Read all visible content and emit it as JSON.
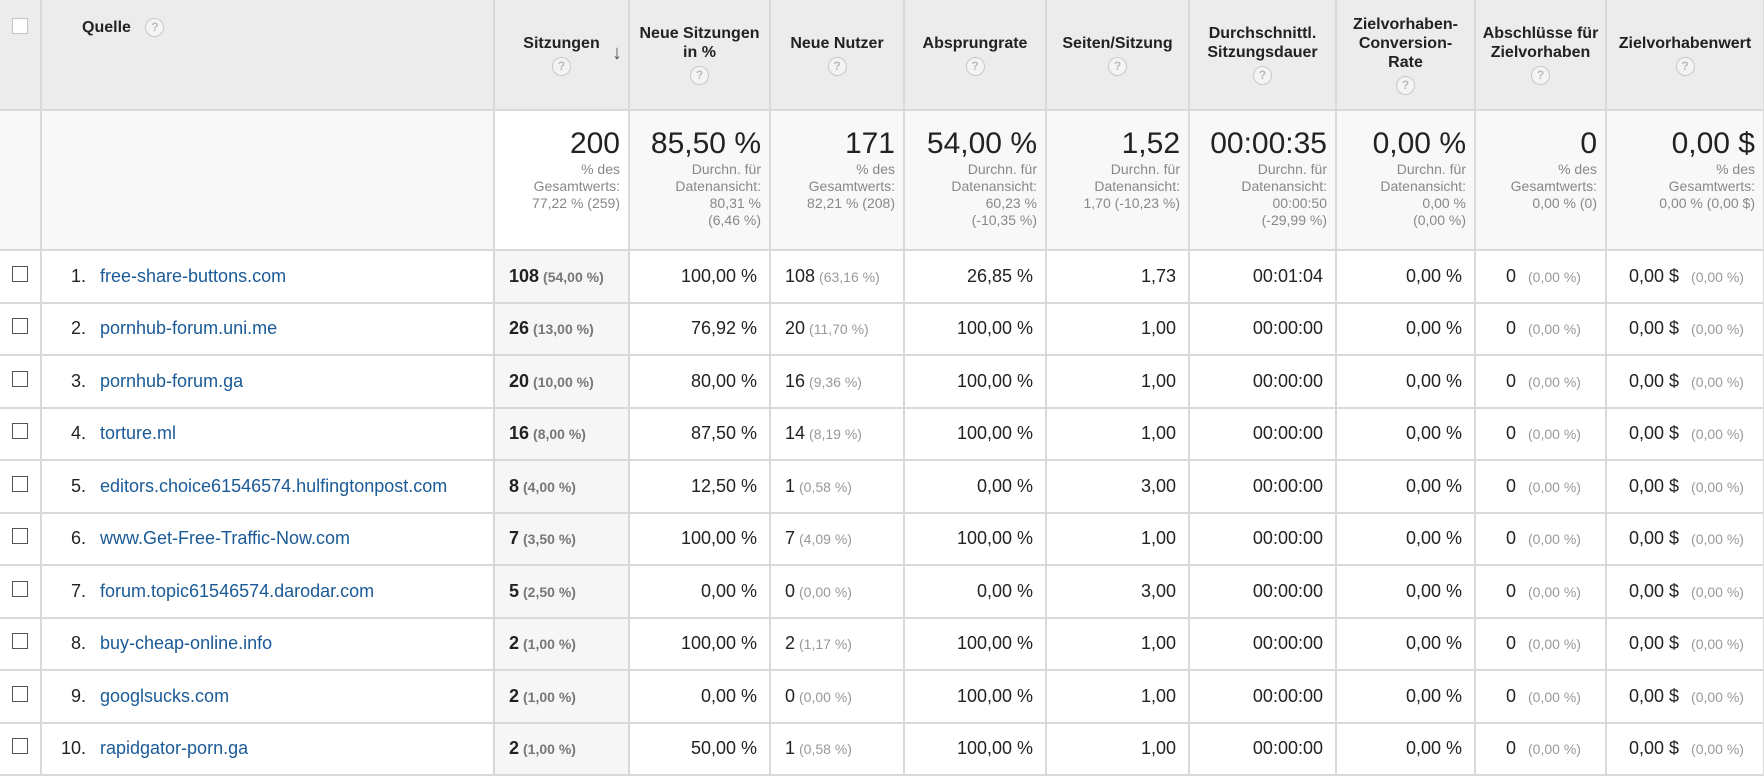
{
  "header": {
    "quelle": "Quelle",
    "sitzungen": "Sitzungen",
    "neue_sitzungen": "Neue Sitzungen in %",
    "neue_nutzer": "Neue Nutzer",
    "absprungrate": "Absprungrate",
    "seiten_sitzung": "Seiten/Sitzung",
    "dauer": "Durchschnittl. Sitzungsdauer",
    "conversion": "Zielvorhaben-Conversion-Rate",
    "abschluesse": "Abschlüsse für Zielvorhaben",
    "wert": "Zielvorhabenwert",
    "help_glyph": "?",
    "sort_glyph": "↓"
  },
  "totals": {
    "sitzungen": {
      "value": "200",
      "sub": "% des\nGesamtwerts:\n77,22 % (259)"
    },
    "neue_sitzungen": {
      "value": "85,50 %",
      "sub": "Durchn. für\nDatenansicht:\n80,31 %\n(6,46 %)"
    },
    "neue_nutzer": {
      "value": "171",
      "sub": "% des\nGesamtwerts:\n82,21 % (208)"
    },
    "absprungrate": {
      "value": "54,00 %",
      "sub": "Durchn. für\nDatenansicht:\n60,23 %\n(-10,35 %)"
    },
    "seiten_sitzung": {
      "value": "1,52",
      "sub": "Durchn. für\nDatenansicht:\n1,70 (-10,23 %)"
    },
    "dauer": {
      "value": "00:00:35",
      "sub": "Durchn. für\nDatenansicht:\n00:00:50\n(-29,99 %)"
    },
    "conversion": {
      "value": "0,00 %",
      "sub": "Durchn. für\nDatenansicht:\n0,00 %\n(0,00 %)"
    },
    "abschluesse": {
      "value": "0",
      "sub": "% des\nGesamtwerts:\n0,00 % (0)"
    },
    "wert": {
      "value": "0,00 $",
      "sub": "% des\nGesamtwerts:\n0,00 % (0,00 $)"
    }
  },
  "rows": [
    {
      "idx": "1.",
      "source": "free-share-buttons.com",
      "sessions": "108",
      "sessions_pct": "(54,00 %)",
      "new_sessions": "100,00 %",
      "new_users": "108",
      "new_users_pct": "(63,16 %)",
      "bounce": "26,85 %",
      "pages": "1,73",
      "duration": "00:01:04",
      "conv": "0,00 %",
      "goals": "0",
      "goals_pct": "(0,00 %)",
      "value": "0,00 $",
      "value_pct": "(0,00 %)"
    },
    {
      "idx": "2.",
      "source": "pornhub-forum.uni.me",
      "sessions": "26",
      "sessions_pct": "(13,00 %)",
      "new_sessions": "76,92 %",
      "new_users": "20",
      "new_users_pct": "(11,70 %)",
      "bounce": "100,00 %",
      "pages": "1,00",
      "duration": "00:00:00",
      "conv": "0,00 %",
      "goals": "0",
      "goals_pct": "(0,00 %)",
      "value": "0,00 $",
      "value_pct": "(0,00 %)"
    },
    {
      "idx": "3.",
      "source": "pornhub-forum.ga",
      "sessions": "20",
      "sessions_pct": "(10,00 %)",
      "new_sessions": "80,00 %",
      "new_users": "16",
      "new_users_pct": "(9,36 %)",
      "bounce": "100,00 %",
      "pages": "1,00",
      "duration": "00:00:00",
      "conv": "0,00 %",
      "goals": "0",
      "goals_pct": "(0,00 %)",
      "value": "0,00 $",
      "value_pct": "(0,00 %)"
    },
    {
      "idx": "4.",
      "source": "torture.ml",
      "sessions": "16",
      "sessions_pct": "(8,00 %)",
      "new_sessions": "87,50 %",
      "new_users": "14",
      "new_users_pct": "(8,19 %)",
      "bounce": "100,00 %",
      "pages": "1,00",
      "duration": "00:00:00",
      "conv": "0,00 %",
      "goals": "0",
      "goals_pct": "(0,00 %)",
      "value": "0,00 $",
      "value_pct": "(0,00 %)"
    },
    {
      "idx": "5.",
      "source": "editors.choice61546574.hulfingtonpost.com",
      "sessions": "8",
      "sessions_pct": "(4,00 %)",
      "new_sessions": "12,50 %",
      "new_users": "1",
      "new_users_pct": "(0,58 %)",
      "bounce": "0,00 %",
      "pages": "3,00",
      "duration": "00:00:00",
      "conv": "0,00 %",
      "goals": "0",
      "goals_pct": "(0,00 %)",
      "value": "0,00 $",
      "value_pct": "(0,00 %)"
    },
    {
      "idx": "6.",
      "source": "www.Get-Free-Traffic-Now.com",
      "sessions": "7",
      "sessions_pct": "(3,50 %)",
      "new_sessions": "100,00 %",
      "new_users": "7",
      "new_users_pct": "(4,09 %)",
      "bounce": "100,00 %",
      "pages": "1,00",
      "duration": "00:00:00",
      "conv": "0,00 %",
      "goals": "0",
      "goals_pct": "(0,00 %)",
      "value": "0,00 $",
      "value_pct": "(0,00 %)"
    },
    {
      "idx": "7.",
      "source": "forum.topic61546574.darodar.com",
      "sessions": "5",
      "sessions_pct": "(2,50 %)",
      "new_sessions": "0,00 %",
      "new_users": "0",
      "new_users_pct": "(0,00 %)",
      "bounce": "0,00 %",
      "pages": "3,00",
      "duration": "00:00:00",
      "conv": "0,00 %",
      "goals": "0",
      "goals_pct": "(0,00 %)",
      "value": "0,00 $",
      "value_pct": "(0,00 %)"
    },
    {
      "idx": "8.",
      "source": "buy-cheap-online.info",
      "sessions": "2",
      "sessions_pct": "(1,00 %)",
      "new_sessions": "100,00 %",
      "new_users": "2",
      "new_users_pct": "(1,17 %)",
      "bounce": "100,00 %",
      "pages": "1,00",
      "duration": "00:00:00",
      "conv": "0,00 %",
      "goals": "0",
      "goals_pct": "(0,00 %)",
      "value": "0,00 $",
      "value_pct": "(0,00 %)"
    },
    {
      "idx": "9.",
      "source": "googlsucks.com",
      "sessions": "2",
      "sessions_pct": "(1,00 %)",
      "new_sessions": "0,00 %",
      "new_users": "0",
      "new_users_pct": "(0,00 %)",
      "bounce": "100,00 %",
      "pages": "1,00",
      "duration": "00:00:00",
      "conv": "0,00 %",
      "goals": "0",
      "goals_pct": "(0,00 %)",
      "value": "0,00 $",
      "value_pct": "(0,00 %)"
    },
    {
      "idx": "10.",
      "source": "rapidgator-porn.ga",
      "sessions": "2",
      "sessions_pct": "(1,00 %)",
      "new_sessions": "50,00 %",
      "new_users": "1",
      "new_users_pct": "(0,58 %)",
      "bounce": "100,00 %",
      "pages": "1,00",
      "duration": "00:00:00",
      "conv": "0,00 %",
      "goals": "0",
      "goals_pct": "(0,00 %)",
      "value": "0,00 $",
      "value_pct": "(0,00 %)"
    }
  ]
}
